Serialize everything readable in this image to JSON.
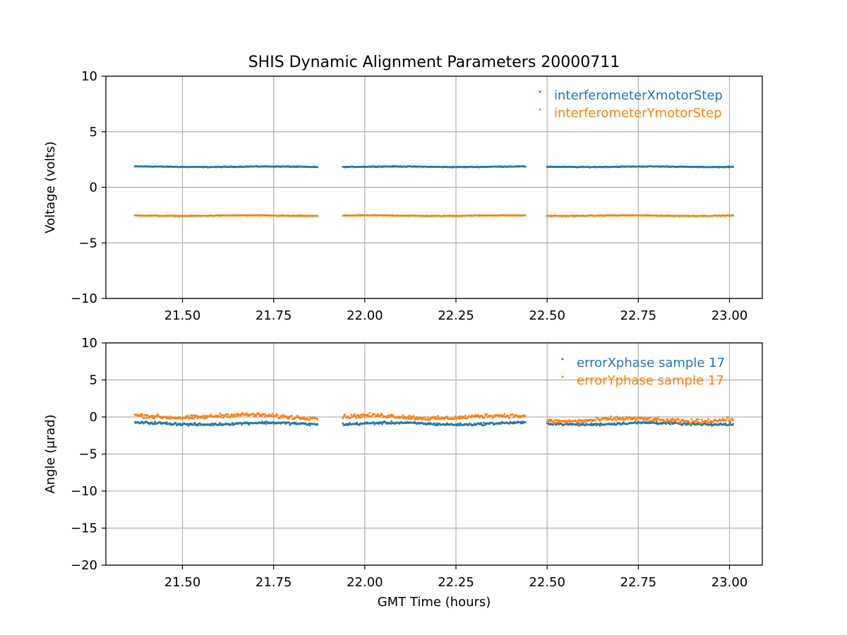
{
  "title": "SHIS Dynamic Alignment Parameters 20000711",
  "colors": {
    "series1": "#1f77b4",
    "series2": "#ff7f0e",
    "grid": "#b0b0b0",
    "axes": "#000000"
  },
  "chart_data": [
    {
      "type": "scatter",
      "title": "SHIS Dynamic Alignment Parameters 20000711",
      "xlabel": "",
      "ylabel": "Voltage (volts)",
      "xlim": [
        21.29,
        23.09
      ],
      "ylim": [
        -10,
        10
      ],
      "xticks": [
        21.5,
        21.75,
        22.0,
        22.25,
        22.5,
        22.75,
        23.0
      ],
      "xtick_labels": [
        "21.50",
        "21.75",
        "22.00",
        "22.25",
        "22.50",
        "22.75",
        "23.00"
      ],
      "yticks": [
        -10,
        -5,
        0,
        5,
        10
      ],
      "ytick_labels": [
        "−10",
        "−5",
        "0",
        "5",
        "10"
      ],
      "grid": true,
      "legend": "top-right",
      "segments": [
        [
          21.37,
          21.87
        ],
        [
          21.94,
          22.44
        ],
        [
          22.5,
          23.01
        ]
      ],
      "series": [
        {
          "name": "interferometerXmotorStep",
          "color": "#1f77b4",
          "values": [
            1.85,
            1.85,
            1.85
          ],
          "noise": 0.05
        },
        {
          "name": "interferometerYmotorStep",
          "color": "#ff7f0e",
          "values": [
            -2.55,
            -2.55,
            -2.55
          ],
          "noise": 0.05
        }
      ]
    },
    {
      "type": "scatter",
      "title": "",
      "xlabel": "GMT Time (hours)",
      "ylabel": "Angle (μrad)",
      "xlim": [
        21.29,
        23.09
      ],
      "ylim": [
        -20,
        10
      ],
      "xticks": [
        21.5,
        21.75,
        22.0,
        22.25,
        22.5,
        22.75,
        23.0
      ],
      "xtick_labels": [
        "21.50",
        "21.75",
        "22.00",
        "22.25",
        "22.50",
        "22.75",
        "23.00"
      ],
      "yticks": [
        -20,
        -15,
        -10,
        -5,
        0,
        5,
        10
      ],
      "ytick_labels": [
        "−20",
        "−15",
        "−10",
        "−5",
        "0",
        "5",
        "10"
      ],
      "grid": true,
      "legend": "top-right",
      "segments": [
        [
          21.37,
          21.87
        ],
        [
          21.94,
          22.44
        ],
        [
          22.5,
          23.01
        ]
      ],
      "series": [
        {
          "name": "errorXphase sample 17",
          "color": "#1f77b4",
          "values": [
            -0.9,
            -0.9,
            -0.9
          ],
          "noise": 0.25
        },
        {
          "name": "errorYphase sample 17",
          "color": "#ff7f0e",
          "values": [
            0.1,
            0.0,
            -0.4
          ],
          "noise": 0.4
        }
      ]
    }
  ]
}
